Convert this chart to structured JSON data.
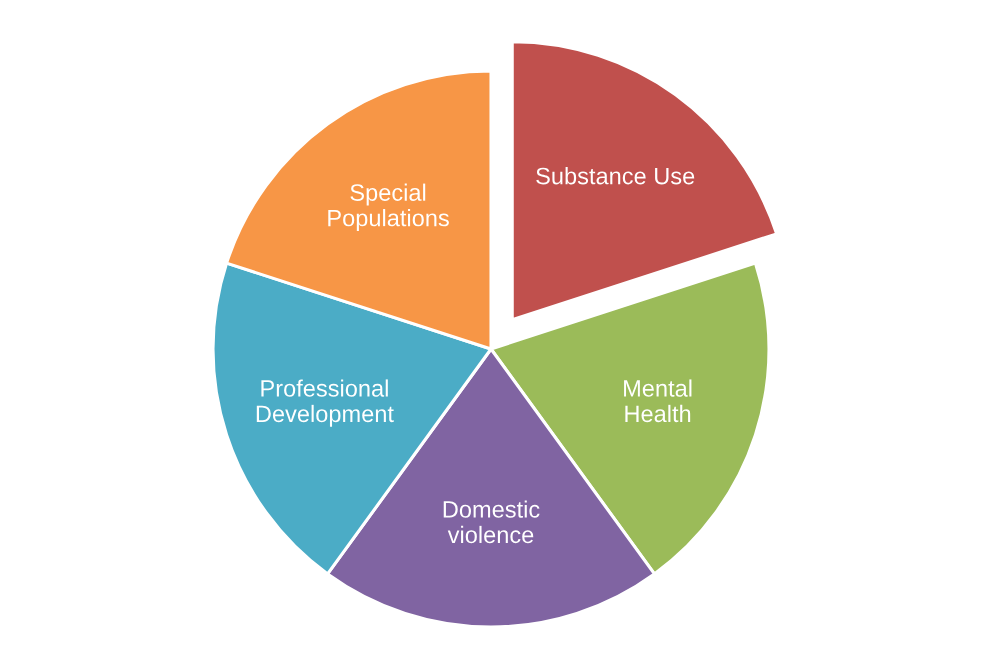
{
  "chart_data": {
    "type": "pie",
    "categories": [
      "Substance Use",
      "Mental\nHealth",
      "Domestic\nviolence",
      "Professional\nDevelopment",
      "Special\nPopulations"
    ],
    "values": [
      20,
      20,
      20,
      20,
      20
    ],
    "colors": [
      "#c0504d",
      "#9bbb59",
      "#8064a2",
      "#4bacc6",
      "#f79646"
    ],
    "legend": false
  }
}
